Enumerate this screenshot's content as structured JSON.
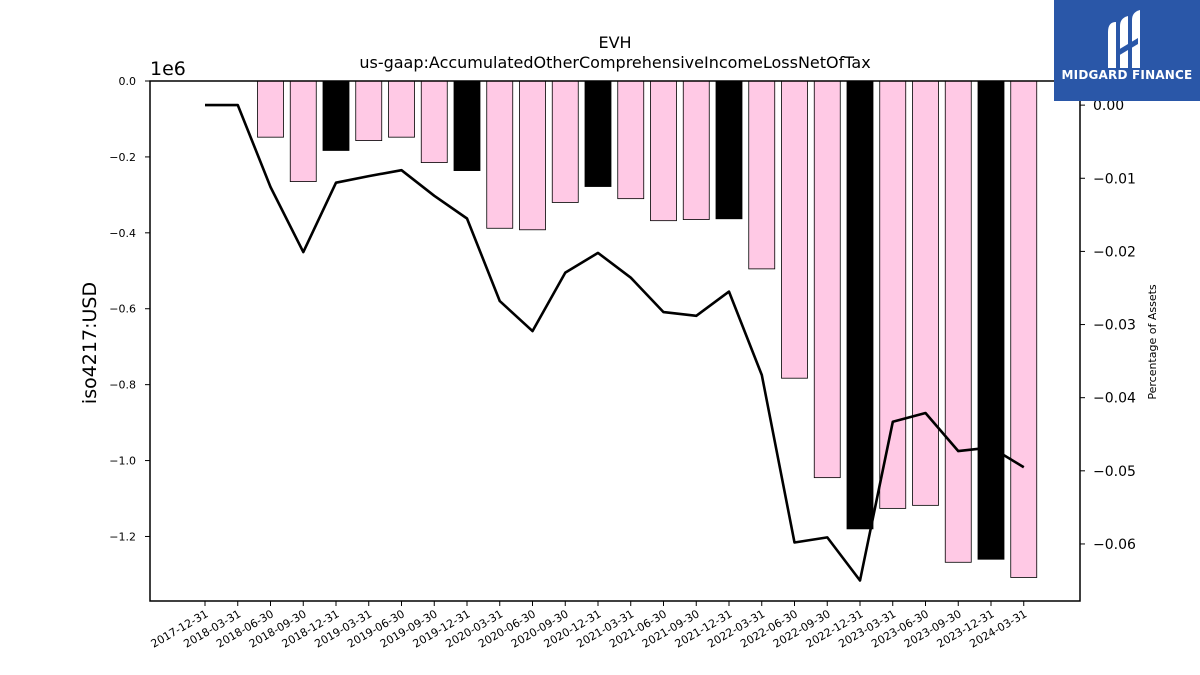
{
  "brand": {
    "name": "MIDGARD FINANCE"
  },
  "chart_data": {
    "type": "bar",
    "title": "EVH",
    "subtitle": "us-gaap:AccumulatedOtherComprehensiveIncomeLossNetOfTax",
    "ylabel": "iso4217:USD",
    "ylabel_right": "Percentage of Assets",
    "y_offset_label": "1e6",
    "ylim": [
      -1.37,
      0.0
    ],
    "ylim_right": [
      -0.0678,
      0.0033
    ],
    "y_ticks": [
      0.0,
      -0.2,
      -0.4,
      -0.6,
      -0.8,
      -1.0,
      -1.2
    ],
    "y_tick_labels": [
      "0.0",
      "−0.2",
      "−0.4",
      "−0.6",
      "−0.8",
      "−1.0",
      "−1.2"
    ],
    "y_ticks_right": [
      0.0,
      -0.01,
      -0.02,
      -0.03,
      -0.04,
      -0.05,
      -0.06
    ],
    "y_tick_labels_right": [
      "0.00",
      "−0.01",
      "−0.02",
      "−0.03",
      "−0.04",
      "−0.05",
      "−0.06"
    ],
    "categories": [
      "2017-12-31",
      "2018-03-31",
      "2018-06-30",
      "2018-09-30",
      "2018-12-31",
      "2019-03-31",
      "2019-06-30",
      "2019-09-30",
      "2019-12-31",
      "2020-03-31",
      "2020-06-30",
      "2020-09-30",
      "2020-12-31",
      "2021-03-31",
      "2021-06-30",
      "2021-09-30",
      "2021-12-31",
      "2022-03-31",
      "2022-06-30",
      "2022-09-30",
      "2022-12-31",
      "2023-03-31",
      "2023-06-30",
      "2023-09-30",
      "2023-12-31",
      "2024-03-31"
    ],
    "series": [
      {
        "type": "bar",
        "axis": "left",
        "values": [
          null,
          null,
          -0.148,
          -0.265,
          -0.183,
          -0.157,
          -0.148,
          -0.215,
          -0.236,
          -0.388,
          -0.392,
          -0.32,
          -0.278,
          -0.31,
          -0.368,
          -0.365,
          -0.363,
          -0.495,
          -0.783,
          -1.045,
          -1.18,
          -1.126,
          -1.118,
          -1.268,
          -1.26,
          -1.308
        ],
        "colors": [
          "#ffc9e5",
          "#ffc9e5",
          "#ffc9e5",
          "#ffc9e5",
          "#000000",
          "#ffc9e5",
          "#ffc9e5",
          "#ffc9e5",
          "#000000",
          "#ffc9e5",
          "#ffc9e5",
          "#ffc9e5",
          "#000000",
          "#ffc9e5",
          "#ffc9e5",
          "#ffc9e5",
          "#000000",
          "#ffc9e5",
          "#ffc9e5",
          "#ffc9e5",
          "#000000",
          "#ffc9e5",
          "#ffc9e5",
          "#ffc9e5",
          "#000000",
          "#ffc9e5"
        ]
      },
      {
        "type": "line",
        "axis": "right",
        "color": "#000000",
        "values": [
          0.0,
          0.0,
          -0.0112,
          -0.0201,
          -0.0106,
          -0.0097,
          -0.0089,
          -0.0124,
          -0.0155,
          -0.0268,
          -0.0309,
          -0.0229,
          -0.0202,
          -0.0236,
          -0.0283,
          -0.0288,
          -0.0255,
          -0.0369,
          -0.0598,
          -0.0591,
          -0.065,
          -0.0433,
          -0.0421,
          -0.0473,
          -0.0468,
          -0.0495
        ]
      }
    ],
    "grid": false,
    "legend": "none"
  }
}
